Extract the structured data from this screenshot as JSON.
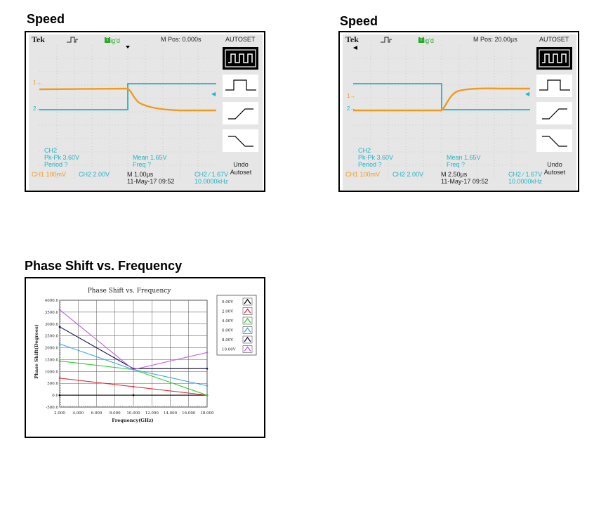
{
  "sections": {
    "speed_left_title": "Speed",
    "speed_right_title": "Speed",
    "phase_title": "Phase Shift vs. Frequency"
  },
  "scope_left": {
    "brand": "Tek",
    "trig_label": "Trig'd",
    "trig_box": "T",
    "mpos": "M Pos: 0.000s",
    "autoset": "AUTOSET",
    "undo_line1": "Undo",
    "undo_line2": "Autoset",
    "meas_ch": "CH2",
    "meas_pkpk": "Pk-Pk 3.60V",
    "meas_period": "Period ?",
    "meas_mean": "Mean 1.65V",
    "meas_freq": "Freq ?",
    "ch1": "CH1  100mV",
    "ch2": "CH2  2.00V",
    "timebase": "M 1.00µs",
    "date": "11-May-17 09:52",
    "trig_ch": "CH2 ∕ 1.67V",
    "trig_freq": "10.0000kHz",
    "marker1": "1→",
    "marker2": "2→"
  },
  "scope_right": {
    "brand": "Tek",
    "trig_label": "Trig'd",
    "trig_box": "T",
    "mpos": "M Pos: 20.00µs",
    "autoset": "AUTOSET",
    "undo_line1": "Undo",
    "undo_line2": "Autoset",
    "meas_ch": "CH2",
    "meas_pkpk": "Pk-Pk 3.60V",
    "meas_period": "Period ?",
    "meas_mean": "Mean 1.65V",
    "meas_freq": "Freq ?",
    "ch1": "CH1  100mV",
    "ch2": "CH2  2.00V",
    "timebase": "M 2.50µs",
    "date": "11-May-17 09:52",
    "trig_ch": "CH2 ∕ 1.67V",
    "trig_freq": "10.0000kHz",
    "marker1": "1→",
    "marker2": "2→"
  },
  "colors": {
    "ch1": "#f39a1c",
    "ch2": "#1fb5c4",
    "screen_bg": "#e6e6e6",
    "grid": "#b0b0b0"
  },
  "chart_data": {
    "type": "line",
    "title": "Phase Shift vs. Frequency",
    "xlabel": "Frequency(GHz)",
    "ylabel": "Phase Shift(Degrees)",
    "x": [
      2.0,
      10.0,
      18.0
    ],
    "xlim": [
      2.0,
      18.0
    ],
    "ylim": [
      -500,
      4000
    ],
    "xticks": [
      "2.000",
      "4.000",
      "6.000",
      "8.000",
      "10.000",
      "12.000",
      "14.000",
      "16.000",
      "18.000"
    ],
    "yticks": [
      "-500.0",
      "0.0",
      "500.0",
      "1000.0",
      "1500.0",
      "2000.0",
      "2500.0",
      "3000.0",
      "3500.0",
      "4000.0"
    ],
    "legend_position": "top-right",
    "grid": true,
    "series": [
      {
        "name": "0.00V",
        "color": "#000000",
        "values": [
          0,
          0,
          0
        ]
      },
      {
        "name": "2.00V",
        "color": "#e0303a",
        "values": [
          720,
          360,
          0
        ]
      },
      {
        "name": "4.00V",
        "color": "#2ecc2e",
        "values": [
          1440,
          1080,
          0
        ]
      },
      {
        "name": "6.00V",
        "color": "#3aa6e8",
        "values": [
          2160,
          1080,
          400
        ]
      },
      {
        "name": "8.00V",
        "color": "#101050",
        "values": [
          2880,
          1120,
          1120
        ]
      },
      {
        "name": "10.00V",
        "color": "#c060e0",
        "values": [
          3600,
          1080,
          1800
        ]
      }
    ]
  }
}
